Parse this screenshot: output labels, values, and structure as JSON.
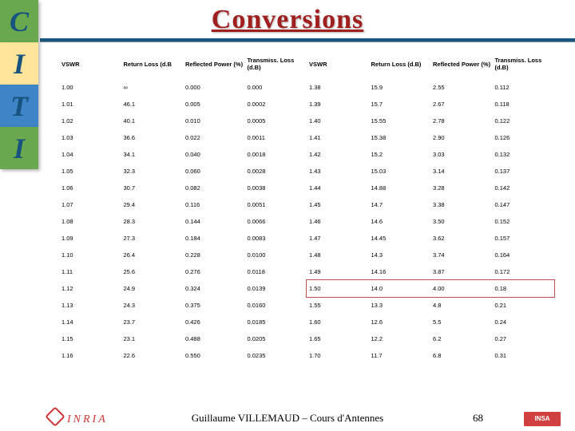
{
  "title": "Conversions",
  "sidebar": [
    "C",
    "I",
    "T",
    "I"
  ],
  "sidebar_colors": [
    "cell-green",
    "cell-yellow",
    "cell-blue",
    "cell-green"
  ],
  "headers": [
    "VSWR",
    "Return Loss (d.B",
    "Reflected Power (%)",
    "Transmiss. Loss (d.B)",
    "VSWR",
    "Return Loss (d.B)",
    "Reflected Power (%)",
    "Transmiss. Loss (d.B)"
  ],
  "rows": [
    [
      "1.00",
      "∞",
      "0.000",
      "0.000",
      "1.38",
      "15.9",
      "2.55",
      "0.112"
    ],
    [
      "1.01",
      "46.1",
      "0.005",
      "0.0002",
      "1.39",
      "15.7",
      "2.67",
      "0.118"
    ],
    [
      "1.02",
      "40.1",
      "0.010",
      "0.0005",
      "1.40",
      "15.55",
      "2.78",
      "0.122"
    ],
    [
      "1.03",
      "36.6",
      "0.022",
      "0.0011",
      "1.41",
      "15.38",
      "2.90",
      "0.126"
    ],
    [
      "1.04",
      "34.1",
      "0.040",
      "0.0018",
      "1.42",
      "15.2",
      "3.03",
      "0.132"
    ],
    [
      "1.05",
      "32.3",
      "0.060",
      "0.0028",
      "1.43",
      "15.03",
      "3.14",
      "0.137"
    ],
    [
      "1.06",
      "30.7",
      "0.082",
      "0.0038",
      "1.44",
      "14.88",
      "3.28",
      "0.142"
    ],
    [
      "1.07",
      "29.4",
      "0.116",
      "0.0051",
      "1.45",
      "14.7",
      "3.38",
      "0.147"
    ],
    [
      "1.08",
      "28.3",
      "0.144",
      "0.0066",
      "1.46",
      "14.6",
      "3.50",
      "0.152"
    ],
    [
      "1.09",
      "27.3",
      "0.184",
      "0.0083",
      "1.47",
      "14.45",
      "3.62",
      "0.157"
    ],
    [
      "1.10",
      "26.4",
      "0.228",
      "0.0100",
      "1.48",
      "14.3",
      "3.74",
      "0.164"
    ],
    [
      "1.11",
      "25.6",
      "0.276",
      "0.0118",
      "1.49",
      "14.16",
      "3.87",
      "0.172"
    ],
    [
      "1.12",
      "24.9",
      "0.324",
      "0.0139",
      "1.50",
      "14.0",
      "4.00",
      "0.18"
    ],
    [
      "1.13",
      "24.3",
      "0.375",
      "0.0160",
      "1.55",
      "13.3",
      "4.8",
      "0.21"
    ],
    [
      "1.14",
      "23.7",
      "0.426",
      "0.0185",
      "1.60",
      "12.6",
      "5.5",
      "0.24"
    ],
    [
      "1.15",
      "23.1",
      "0.488",
      "0.0205",
      "1.65",
      "12.2",
      "6.2",
      "0.27"
    ],
    [
      "1.16",
      "22.6",
      "0.550",
      "0.0235",
      "1.70",
      "11.7",
      "6.8",
      "0.31"
    ]
  ],
  "highlight_row_index": 12,
  "footer": "Guillaume VILLEMAUD – Cours d'Antennes",
  "page_number": "68",
  "logo_left": "INRIA",
  "logo_right": "INSA"
}
